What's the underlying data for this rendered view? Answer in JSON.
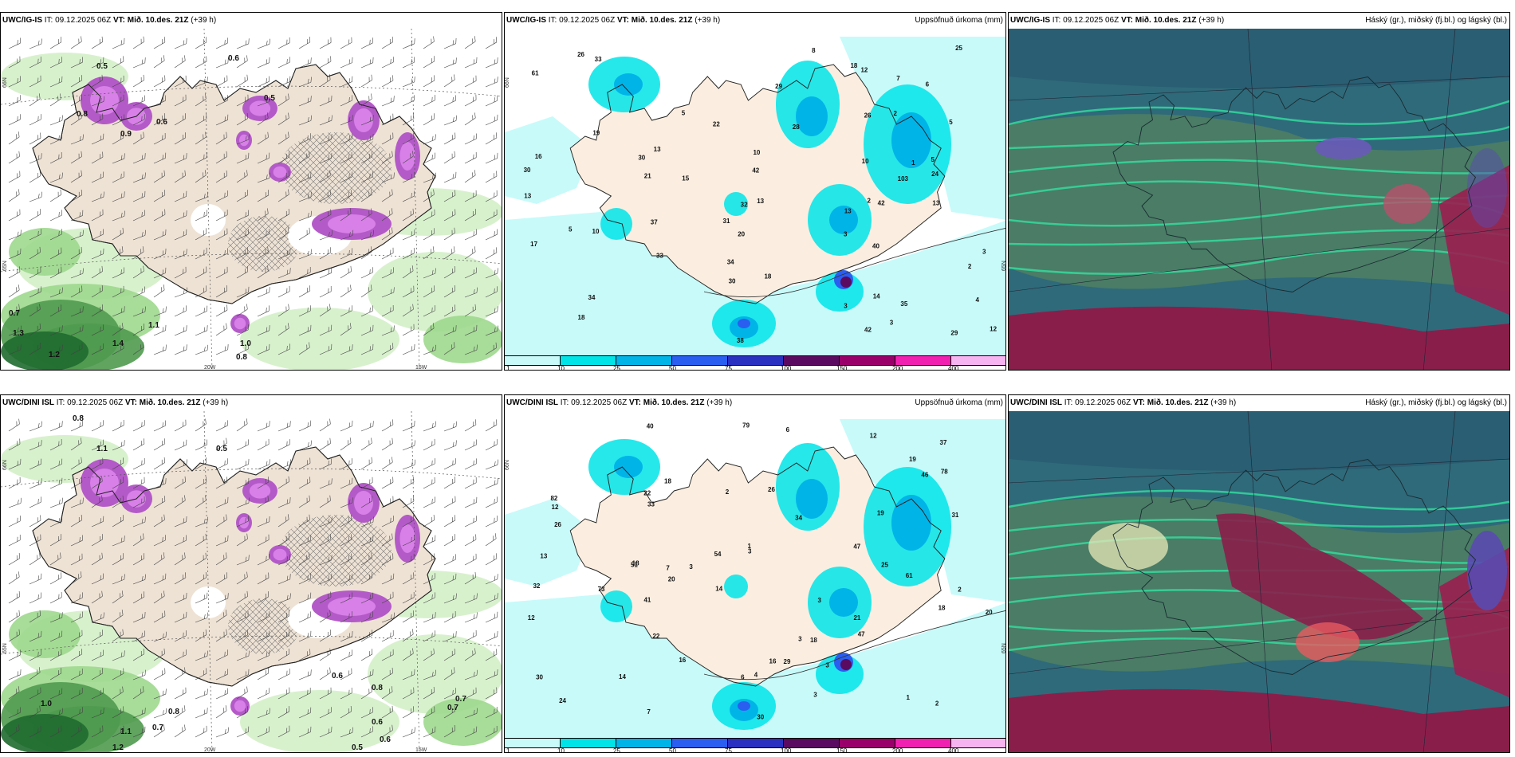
{
  "legend": {
    "ticks": [
      "1",
      "10",
      "25",
      "50",
      "75",
      "100",
      "150",
      "200",
      "400"
    ],
    "colors": [
      "#c8fafa",
      "#00e4e8",
      "#00b4e8",
      "#2a5ef0",
      "#2a30c0",
      "#5a0a60",
      "#9a006a",
      "#f020b0",
      "#f6b4f0"
    ]
  },
  "rows": [
    {
      "model": "UWC/IG-IS",
      "it_label": "IT:",
      "it_value": "09.12.2025 06Z",
      "vt_label": "VT:",
      "vt_value": "Mið. 10.des. 21Z",
      "lead": "(+39 h)",
      "wind": {
        "labels": [
          "0.6",
          "0.5",
          "0.5",
          "0.6",
          "0.7",
          "1.0",
          "0.8",
          "1.1",
          "1.3",
          "1.2",
          "1.4",
          "0.9",
          "0.8"
        ],
        "lat_labels": [
          "66N",
          "65N"
        ],
        "lon_labels": [
          "20W",
          "15W"
        ]
      },
      "precip": {
        "title": "Uppsöfnuð úrkoma (mm)",
        "labels": [
          "3",
          "3",
          "1",
          "2",
          "3",
          "2",
          "5",
          "10",
          "4",
          "3",
          "2",
          "13",
          "17",
          "40",
          "33",
          "29",
          "6",
          "5",
          "7",
          "22",
          "20",
          "13",
          "10",
          "18",
          "24",
          "34",
          "19",
          "26",
          "12",
          "10",
          "5",
          "8",
          "16",
          "14",
          "15",
          "18",
          "28",
          "13",
          "42",
          "42",
          "31",
          "37",
          "29",
          "38",
          "30",
          "5",
          "25",
          "13",
          "32",
          "33",
          "34",
          "30",
          "42",
          "35",
          "61",
          "21",
          "12",
          "26",
          "103",
          "18",
          "13",
          "30"
        ],
        "lat_labels": [
          "66N",
          "65N"
        ]
      },
      "clouds": {
        "title": "Háský (gr.), miðský (fj.bl.) og lágský (bl.)"
      }
    },
    {
      "model": "UWC/DINI ISL",
      "it_label": "IT:",
      "it_value": "09.12.2025 06Z",
      "vt_label": "VT:",
      "vt_value": "Mið. 10.des. 21Z",
      "lead": "(+39 h)",
      "wind": {
        "labels": [
          "0.8",
          "0.5",
          "1.1",
          "1.0",
          "0.7",
          "1.1",
          "1.2",
          "0.5",
          "0.6",
          "0.6",
          "0.7",
          "0.8",
          "0.6",
          "0.8",
          "0.7"
        ],
        "lat_labels": [
          "66N",
          "65N"
        ],
        "lon_labels": [
          "20W",
          "15W"
        ]
      },
      "precip": {
        "title": "Uppsöfnuð úrkoma (mm)",
        "labels": [
          "6",
          "3",
          "3",
          "3",
          "3",
          "3",
          "4",
          "37",
          "47",
          "18",
          "14",
          "18",
          "22",
          "22",
          "26",
          "19",
          "25",
          "31",
          "34",
          "41",
          "12",
          "18",
          "24",
          "16",
          "26",
          "29",
          "30",
          "6",
          "32",
          "73",
          "54",
          "61",
          "82",
          "51",
          "40",
          "12",
          "33",
          "47",
          "30",
          "46",
          "79",
          "21",
          "20",
          "78",
          "12",
          "20",
          "18",
          "19",
          "14",
          "13",
          "7",
          "7",
          "2",
          "2",
          "3",
          "1",
          "2",
          "1",
          "16"
        ],
        "lat_labels": [
          "66N",
          "65N"
        ]
      },
      "clouds": {
        "title": "Háský (gr.), miðský (fj.bl.) og lágský (bl.)"
      }
    }
  ]
}
